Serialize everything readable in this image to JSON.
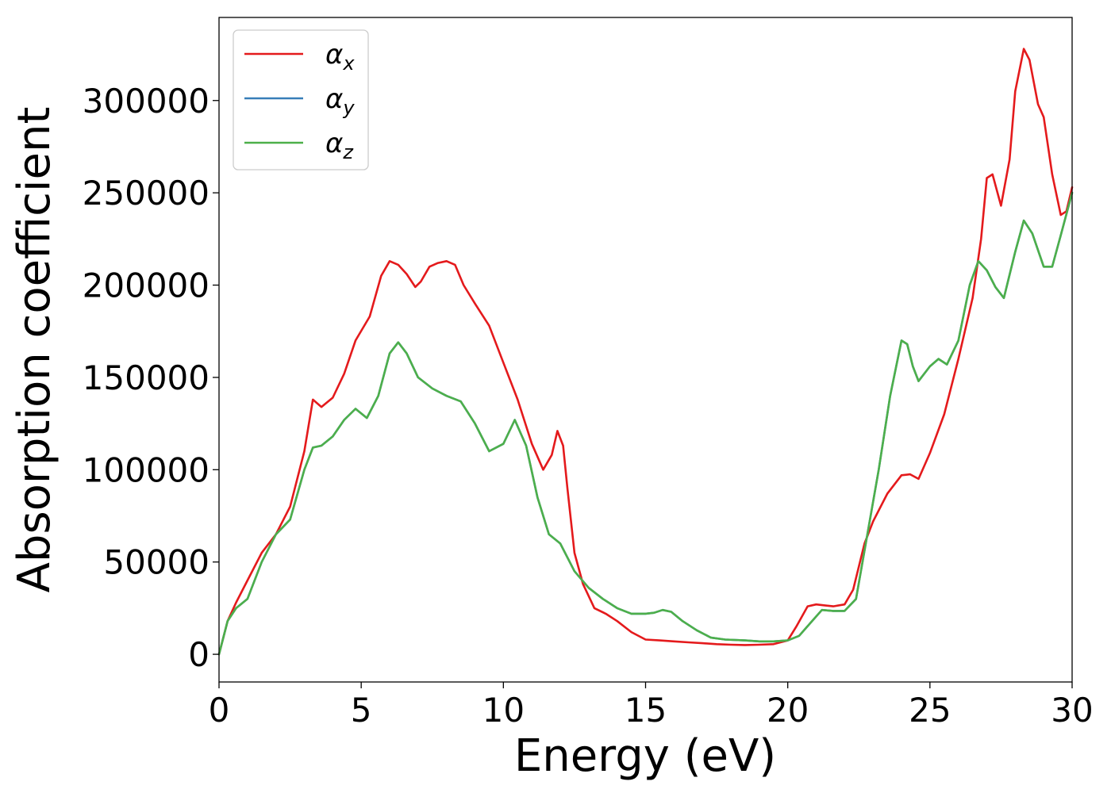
{
  "chart_data": {
    "type": "line",
    "title": "",
    "xlabel": "Energy (eV)",
    "ylabel": "Absorption coefficient",
    "xlim": [
      0,
      30
    ],
    "ylim": [
      -15000,
      345000
    ],
    "xticks": [
      0,
      5,
      10,
      15,
      20,
      25,
      30
    ],
    "yticks": [
      0,
      50000,
      100000,
      150000,
      200000,
      250000,
      300000
    ],
    "grid": false,
    "legend_position": "top-left",
    "series": [
      {
        "name": "α_x",
        "legend_base": "α",
        "legend_sub": "x",
        "color": "#e41a1c",
        "x": [
          0,
          0.3,
          0.6,
          1.0,
          1.5,
          2.0,
          2.5,
          3.0,
          3.3,
          3.6,
          4.0,
          4.4,
          4.8,
          5.3,
          5.7,
          6.0,
          6.3,
          6.6,
          6.9,
          7.1,
          7.4,
          7.7,
          8.0,
          8.3,
          8.6,
          9.0,
          9.5,
          10.0,
          10.5,
          11.0,
          11.4,
          11.7,
          11.9,
          12.1,
          12.25,
          12.5,
          12.8,
          13.2,
          13.6,
          14.0,
          14.5,
          15.0,
          15.5,
          16.0,
          16.5,
          17.0,
          17.5,
          18.0,
          18.5,
          19.0,
          19.5,
          20.0,
          20.3,
          20.7,
          21.0,
          21.3,
          21.6,
          22.0,
          22.3,
          22.7,
          23.0,
          23.5,
          24.0,
          24.3,
          24.6,
          25.0,
          25.5,
          26.0,
          26.5,
          26.8,
          27.0,
          27.2,
          27.5,
          27.8,
          28.0,
          28.3,
          28.5,
          28.8,
          29.0,
          29.3,
          29.6,
          29.8,
          30.0
        ],
        "y": [
          0,
          18000,
          28000,
          40000,
          55000,
          65000,
          80000,
          110000,
          138000,
          134000,
          139000,
          152000,
          170000,
          183000,
          205000,
          213000,
          211000,
          206000,
          199000,
          202000,
          210000,
          212000,
          213000,
          211000,
          200000,
          190000,
          178000,
          158000,
          138000,
          114000,
          100000,
          108000,
          121000,
          113000,
          90000,
          55000,
          38000,
          25000,
          22000,
          18000,
          12000,
          8000,
          7500,
          7000,
          6500,
          6000,
          5500,
          5200,
          5000,
          5200,
          5500,
          7500,
          15000,
          26000,
          27000,
          26500,
          26000,
          27000,
          35000,
          60000,
          72000,
          87000,
          97000,
          97500,
          95000,
          109000,
          130000,
          160000,
          193000,
          225000,
          258000,
          260000,
          243000,
          268000,
          305000,
          328000,
          322000,
          298000,
          291000,
          260000,
          238000,
          240000,
          253000
        ]
      },
      {
        "name": "α_y",
        "legend_base": "α",
        "legend_sub": "y",
        "color": "#377eb8",
        "x": [
          0,
          0.3,
          0.6,
          1.0,
          1.5,
          2.0,
          2.5,
          3.0,
          3.3,
          3.6,
          4.0,
          4.4,
          4.8,
          5.2,
          5.6,
          6.0,
          6.3,
          6.6,
          7.0,
          7.5,
          8.0,
          8.5,
          9.0,
          9.5,
          10.0,
          10.4,
          10.8,
          11.2,
          11.6,
          12.0,
          12.5,
          13.0,
          13.5,
          14.0,
          14.5,
          15.0,
          15.3,
          15.6,
          15.9,
          16.3,
          16.8,
          17.3,
          17.8,
          18.5,
          19.0,
          19.5,
          20.0,
          20.4,
          20.8,
          21.2,
          21.6,
          22.0,
          22.4,
          22.8,
          23.2,
          23.6,
          24.0,
          24.2,
          24.4,
          24.6,
          25.0,
          25.3,
          25.6,
          26.0,
          26.4,
          26.7,
          27.0,
          27.3,
          27.6,
          28.0,
          28.3,
          28.6,
          29.0,
          29.3,
          29.6,
          30.0
        ],
        "y": [
          0,
          18000,
          25000,
          30000,
          50000,
          65000,
          73000,
          100000,
          112000,
          113000,
          118000,
          127000,
          133000,
          128000,
          140000,
          163000,
          169000,
          163000,
          150000,
          144000,
          140000,
          137000,
          125000,
          110000,
          114000,
          127000,
          113000,
          85000,
          65000,
          60000,
          45000,
          36000,
          30000,
          25000,
          22000,
          22000,
          22500,
          24000,
          23000,
          18000,
          13000,
          9000,
          8000,
          7500,
          7000,
          7000,
          7500,
          10000,
          17000,
          24000,
          23500,
          23500,
          30000,
          65000,
          100000,
          140000,
          170000,
          168000,
          156000,
          148000,
          156000,
          160000,
          157000,
          170000,
          200000,
          213000,
          208000,
          199000,
          193000,
          218000,
          235000,
          228000,
          210000,
          210000,
          227000,
          250000
        ]
      },
      {
        "name": "α_z",
        "legend_base": "α",
        "legend_sub": "z",
        "color": "#4daf4a",
        "x": [
          0,
          0.3,
          0.6,
          1.0,
          1.5,
          2.0,
          2.5,
          3.0,
          3.3,
          3.6,
          4.0,
          4.4,
          4.8,
          5.2,
          5.6,
          6.0,
          6.3,
          6.6,
          7.0,
          7.5,
          8.0,
          8.5,
          9.0,
          9.5,
          10.0,
          10.4,
          10.8,
          11.2,
          11.6,
          12.0,
          12.5,
          13.0,
          13.5,
          14.0,
          14.5,
          15.0,
          15.3,
          15.6,
          15.9,
          16.3,
          16.8,
          17.3,
          17.8,
          18.5,
          19.0,
          19.5,
          20.0,
          20.4,
          20.8,
          21.2,
          21.6,
          22.0,
          22.4,
          22.8,
          23.2,
          23.6,
          24.0,
          24.2,
          24.4,
          24.6,
          25.0,
          25.3,
          25.6,
          26.0,
          26.4,
          26.7,
          27.0,
          27.3,
          27.6,
          28.0,
          28.3,
          28.6,
          29.0,
          29.3,
          29.6,
          30.0
        ],
        "y": [
          0,
          18000,
          25000,
          30000,
          50000,
          65000,
          73000,
          100000,
          112000,
          113000,
          118000,
          127000,
          133000,
          128000,
          140000,
          163000,
          169000,
          163000,
          150000,
          144000,
          140000,
          137000,
          125000,
          110000,
          114000,
          127000,
          113000,
          85000,
          65000,
          60000,
          45000,
          36000,
          30000,
          25000,
          22000,
          22000,
          22500,
          24000,
          23000,
          18000,
          13000,
          9000,
          8000,
          7500,
          7000,
          7000,
          7500,
          10000,
          17000,
          24000,
          23500,
          23500,
          30000,
          65000,
          100000,
          140000,
          170000,
          168000,
          156000,
          148000,
          156000,
          160000,
          157000,
          170000,
          200000,
          213000,
          208000,
          199000,
          193000,
          218000,
          235000,
          228000,
          210000,
          210000,
          227000,
          250000
        ]
      }
    ]
  }
}
